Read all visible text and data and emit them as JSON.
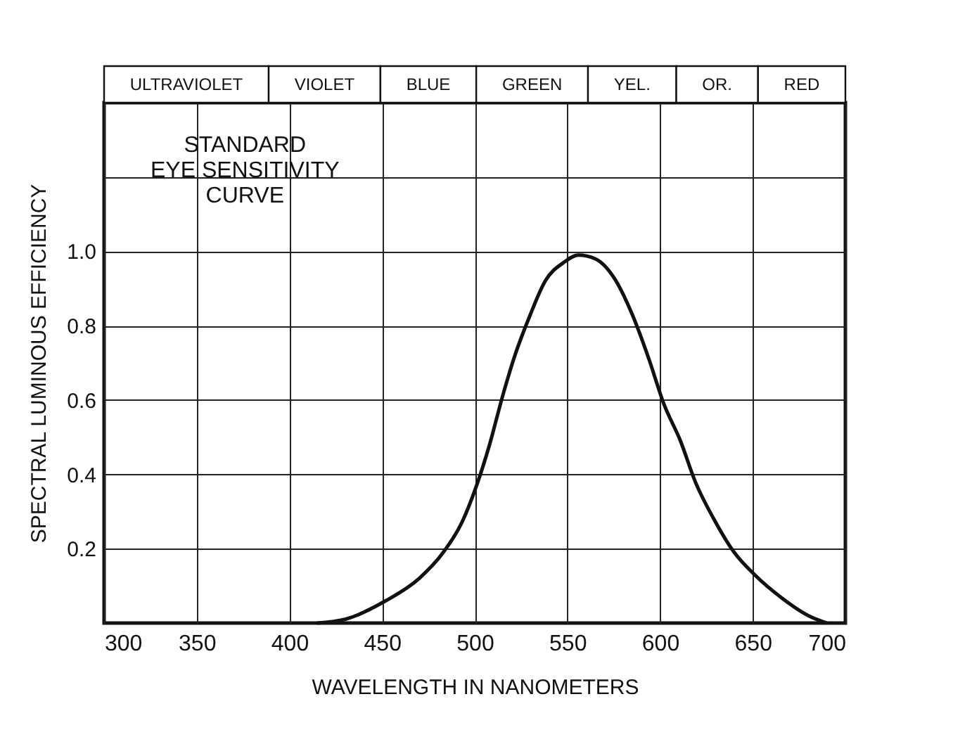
{
  "chart_data": {
    "type": "line",
    "title": "STANDARD\nEYE SENSITIVITY\nCURVE",
    "xlabel": "WAVELENGTH IN NANOMETERS",
    "ylabel": "SPECTRAL LUMINOUS EFFICIENCY",
    "x": [
      415,
      430,
      452,
      470,
      483,
      493,
      501,
      508,
      515,
      521,
      530,
      538,
      548,
      556,
      565,
      575,
      585,
      594,
      602,
      611,
      619,
      629,
      640,
      651,
      665,
      680,
      690
    ],
    "series": [
      {
        "color": "#111111",
        "values": [
          0,
          0.01,
          0.06,
          0.12,
          0.19,
          0.27,
          0.37,
          0.48,
          0.61,
          0.71,
          0.83,
          0.92,
          0.97,
          0.99,
          0.98,
          0.93,
          0.83,
          0.71,
          0.59,
          0.49,
          0.38,
          0.28,
          0.19,
          0.13,
          0.07,
          0.02,
          0
        ]
      }
    ],
    "xlim": [
      300,
      700
    ],
    "xticks": [
      300,
      350,
      400,
      450,
      500,
      550,
      600,
      650,
      700
    ],
    "ylim": [
      0,
      1.4
    ],
    "yticks": [
      0.2,
      0.4,
      0.6,
      0.8,
      {
        "value": 1,
        "label": "1.0"
      },
      {
        "value": 1.2,
        "label": null
      }
    ],
    "grid": true,
    "marker": "none",
    "line_style": "solid",
    "annotations": [
      "ULTRAVIOLET",
      "VIOLET",
      "BLUE",
      "GREEN",
      "YEL.",
      "OR.",
      "RED"
    ]
  }
}
